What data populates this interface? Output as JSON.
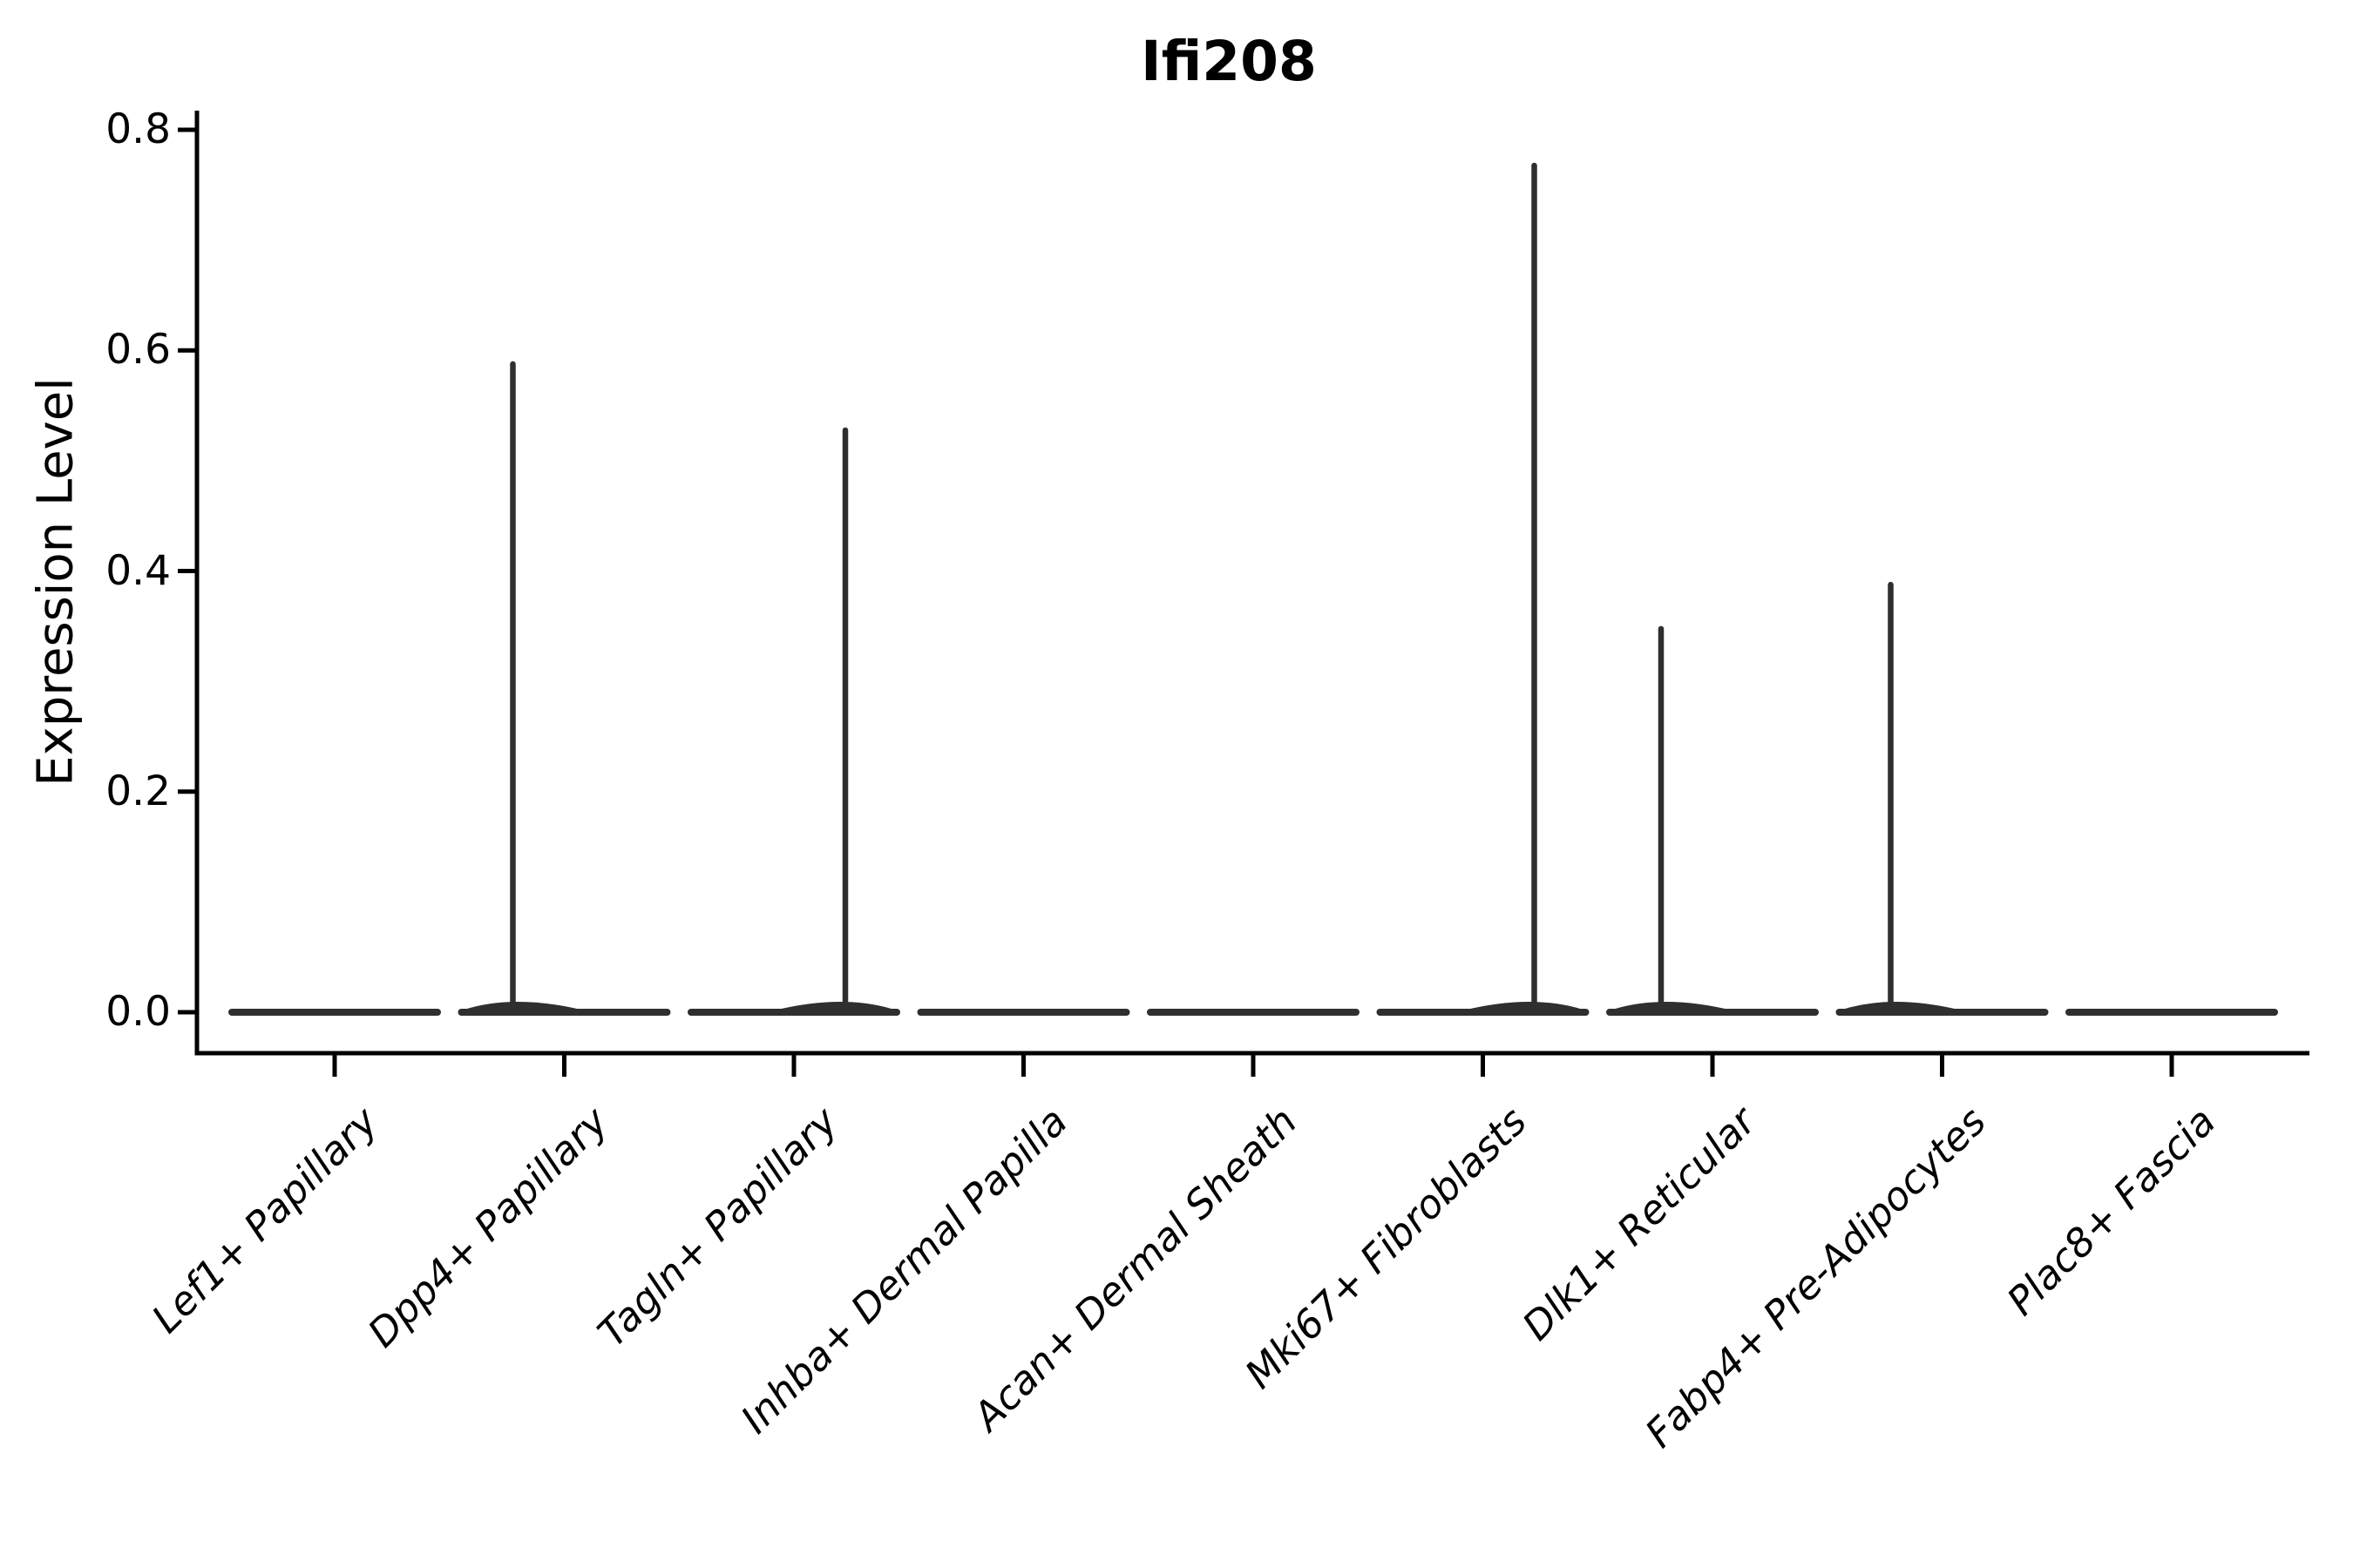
{
  "figure": {
    "title": "Ifi208",
    "background": "#ffffff",
    "axis_color": "#000000",
    "violin_color": "#2f2f2f"
  },
  "chart_data": {
    "type": "violin",
    "title": "Ifi208",
    "xlabel": "",
    "ylabel": "Expression Level",
    "ylim": [
      0.0,
      0.8
    ],
    "grid": false,
    "legend": "none",
    "yticks": [
      {
        "value": 0.0,
        "label": "0.0"
      },
      {
        "value": 0.2,
        "label": "0.2"
      },
      {
        "value": 0.4,
        "label": "0.4"
      },
      {
        "value": 0.6,
        "label": "0.6"
      },
      {
        "value": 0.8,
        "label": "0.8"
      }
    ],
    "categories": [
      {
        "label": "Lef1+ Papillary",
        "max_expression": 0.0,
        "spike_side": null,
        "density_at_zero": "flat"
      },
      {
        "label": "Dpp4+ Papillary",
        "max_expression": 0.59,
        "spike_side": "left",
        "density_at_zero": "flat"
      },
      {
        "label": "Tagln+ Papillary",
        "max_expression": 0.53,
        "spike_side": "right",
        "density_at_zero": "flat"
      },
      {
        "label": "Inhba+ Dermal Papilla",
        "max_expression": 0.0,
        "spike_side": null,
        "density_at_zero": "flat"
      },
      {
        "label": "Acan+ Dermal Sheath",
        "max_expression": 0.0,
        "spike_side": null,
        "density_at_zero": "flat"
      },
      {
        "label": "Mki67+ Fibroblasts",
        "max_expression": 0.77,
        "spike_side": "right",
        "density_at_zero": "flat"
      },
      {
        "label": "Dlk1+ Reticular",
        "max_expression": 0.35,
        "spike_side": "left",
        "density_at_zero": "flat"
      },
      {
        "label": "Fabp4+ Pre-Adipocytes",
        "max_expression": 0.39,
        "spike_side": "left",
        "density_at_zero": "flat"
      },
      {
        "label": "Plac8+ Fascia",
        "max_expression": 0.0,
        "spike_side": null,
        "density_at_zero": "flat"
      }
    ]
  }
}
